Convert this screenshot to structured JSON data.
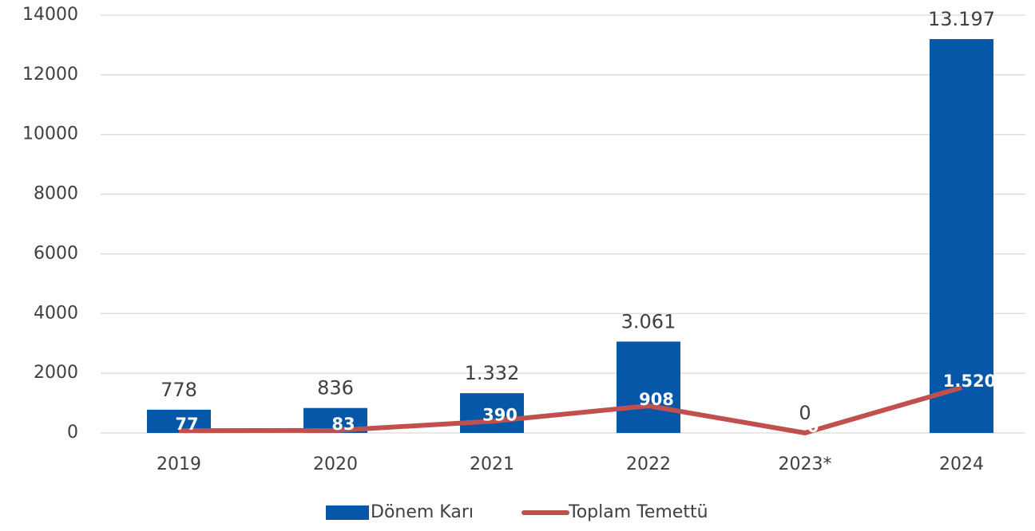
{
  "chart_data": {
    "type": "bar-line",
    "categories": [
      "2019",
      "2020",
      "2021",
      "2022",
      "2023*",
      "2024"
    ],
    "series": [
      {
        "name": "Dönem Karı",
        "color": "#0757a8",
        "type": "bar",
        "values": [
          778,
          836,
          1332,
          3061,
          0,
          13197
        ],
        "value_labels": [
          "778",
          "836",
          "1.332",
          "3.061",
          "0",
          "13.197"
        ]
      },
      {
        "name": "Toplam Temettü",
        "color": "#c0504d",
        "type": "line",
        "values": [
          77,
          83,
          390,
          908,
          0,
          1520
        ],
        "value_labels": [
          "77",
          "83",
          "390",
          "908",
          "0",
          "1.520"
        ]
      }
    ],
    "ylim": [
      0,
      14000
    ],
    "yticks": [
      0,
      2000,
      4000,
      6000,
      8000,
      10000,
      12000,
      14000
    ],
    "grid": true,
    "legend": "bottom"
  }
}
